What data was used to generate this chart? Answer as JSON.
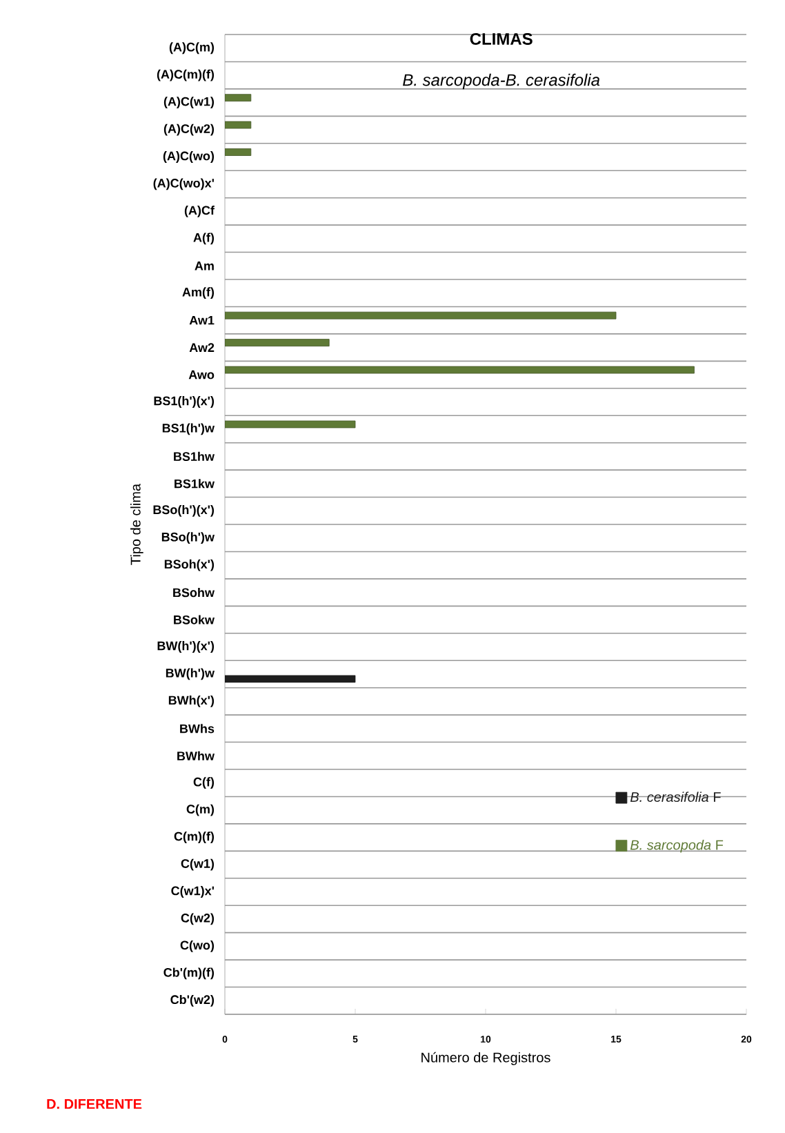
{
  "chart_data": {
    "type": "bar",
    "orientation": "horizontal",
    "title": "CLIMAS",
    "subtitle": "B. sarcopoda-B. cerasifolia",
    "xlabel": "Número de Registros",
    "ylabel": "Tipo de clima",
    "categories": [
      "(A)C(m)",
      "(A)C(m)(f)",
      "(A)C(w1)",
      "(A)C(w2)",
      "(A)C(wo)",
      "(A)C(wo)x'",
      "(A)Cf",
      "A(f)",
      "Am",
      "Am(f)",
      "Aw1",
      "Aw2",
      "Awo",
      "BS1(h')(x')",
      "BS1(h')w",
      "BS1hw",
      "BS1kw",
      "BSo(h')(x')",
      "BSo(h')w",
      "BSoh(x')",
      "BSohw",
      "BSokw",
      "BW(h')(x')",
      "BW(h')w",
      "BWh(x')",
      "BWhs",
      "BWhw",
      "C(f)",
      "C(m)",
      "C(m)(f)",
      "C(w1)",
      "C(w1)x'",
      "C(w2)",
      "C(wo)",
      "Cb'(m)(f)",
      "Cb'(w2)"
    ],
    "series": [
      {
        "name": "*B. cerasifolia* F",
        "color": "#1e1e1e",
        "values": [
          null,
          null,
          null,
          null,
          null,
          null,
          null,
          null,
          null,
          null,
          null,
          null,
          null,
          null,
          null,
          null,
          null,
          null,
          null,
          null,
          null,
          null,
          null,
          5,
          null,
          null,
          null,
          null,
          null,
          null,
          null,
          null,
          null,
          null,
          null,
          null
        ]
      },
      {
        "name": "*B. sarcopoda* F",
        "color": "#5f7a36",
        "values": [
          null,
          null,
          1,
          1,
          1,
          null,
          null,
          null,
          null,
          null,
          15,
          4,
          18,
          null,
          5,
          null,
          null,
          null,
          null,
          null,
          null,
          null,
          null,
          null,
          null,
          null,
          null,
          null,
          null,
          null,
          null,
          null,
          null,
          null,
          null,
          null
        ]
      }
    ],
    "xlim": [
      0,
      20
    ],
    "xticks": [
      0,
      5,
      10,
      15,
      20
    ],
    "grid": "y",
    "legend": "bottom right",
    "annotations": [
      "D. DIFERENTE"
    ]
  }
}
